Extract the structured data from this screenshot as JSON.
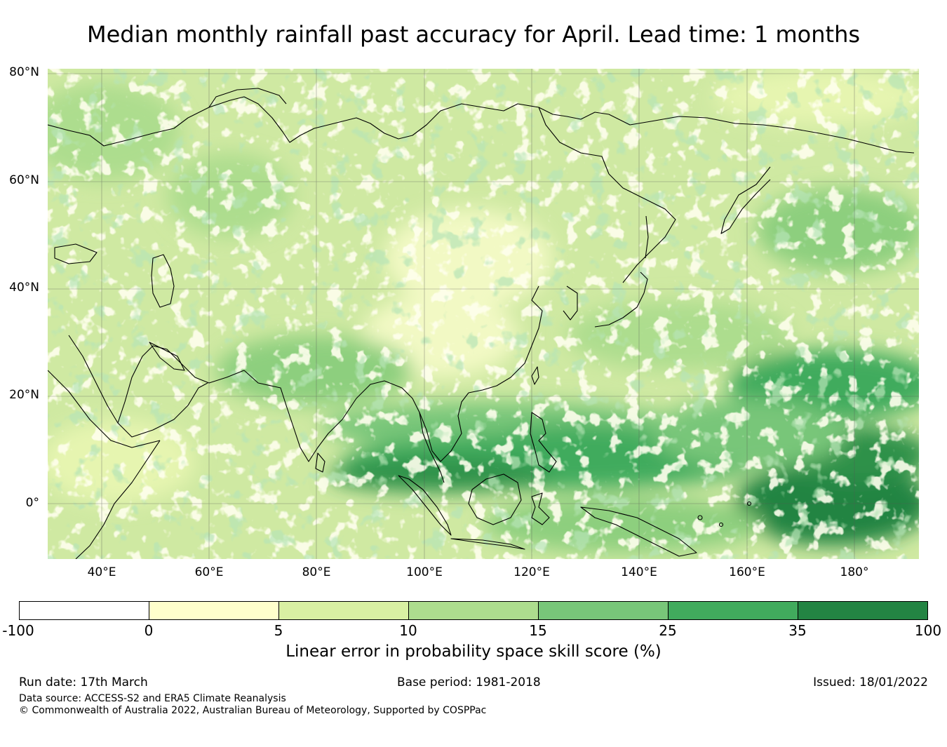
{
  "title": "Median monthly rainfall past accuracy for April. Lead time: 1 months",
  "map": {
    "region": "Asia and Western Pacific",
    "lon_range": [
      30,
      192
    ],
    "lat_range": [
      -10,
      81
    ],
    "lat_ticks": [
      "80°N",
      "60°N",
      "40°N",
      "20°N",
      "0°"
    ],
    "lon_ticks": [
      "40°E",
      "60°E",
      "80°E",
      "100°E",
      "120°E",
      "140°E",
      "160°E",
      "180°"
    ],
    "colors": {
      "land_line": "#000000",
      "grid": "#555555"
    }
  },
  "colorbar": {
    "label": "Linear error in probability space skill score (%)",
    "ticks": [
      "-100",
      "0",
      "5",
      "10",
      "15",
      "25",
      "35",
      "100"
    ],
    "colors": [
      "#ffffff",
      "#ffffcc",
      "#d9f0a3",
      "#addd8e",
      "#78c679",
      "#41ab5d",
      "#238443"
    ]
  },
  "footer": {
    "run_date": "Run date: 17th March",
    "base_period": "Base period: 1981-2018",
    "issued": "Issued: 18/01/2022",
    "data_source": "Data source: ACCESS-S2 and ERA5 Climate Reanalysis",
    "copyright": "© Commonwealth of Australia 2022, Australian Bureau of Meteorology, Supported by COSPPac"
  }
}
